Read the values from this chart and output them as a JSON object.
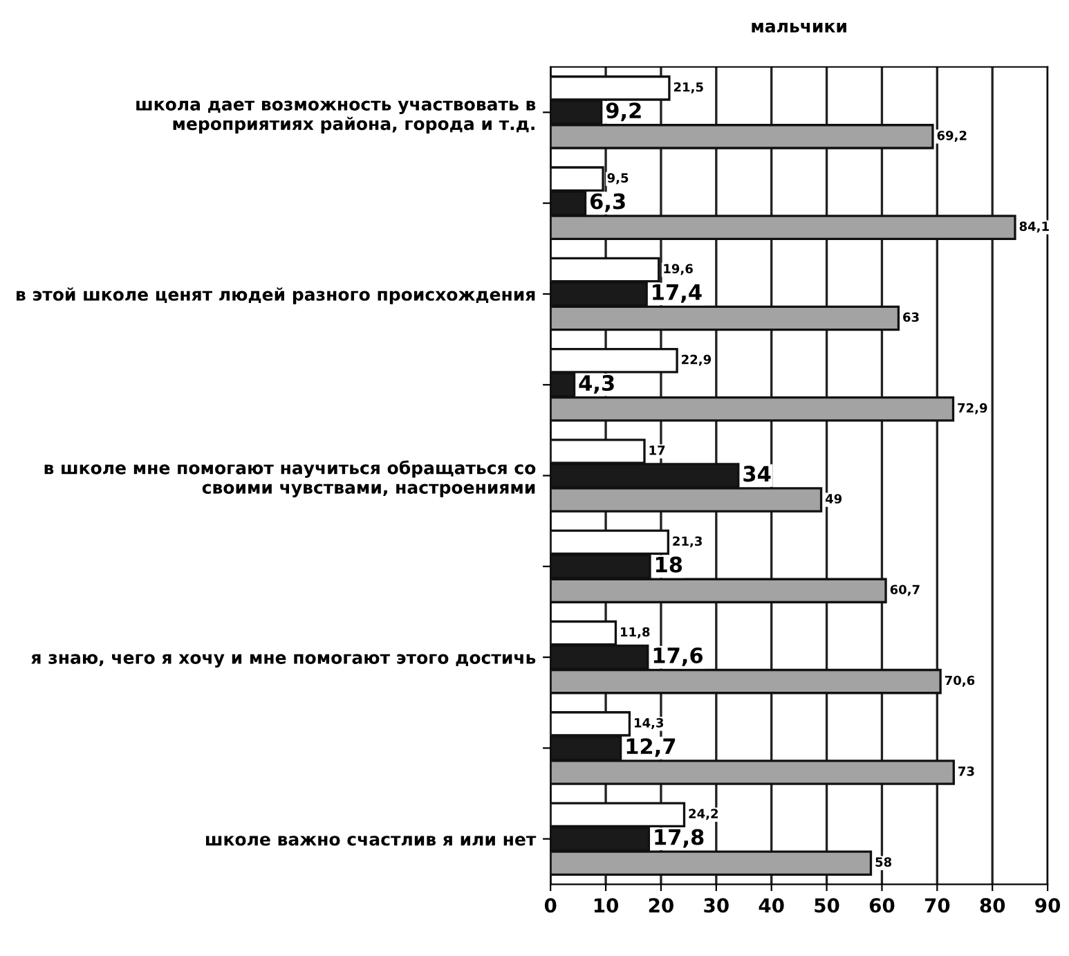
{
  "chart_data": {
    "type": "bar",
    "orientation": "horizontal",
    "title": "мальчики",
    "categories": [
      "школа дает возможность участвовать в мероприятиях района, города и т.д.",
      null,
      "в этой школе ценят людей разного происхождения",
      null,
      "в школе мне помогают научиться обращаться со своими чувствами, настроениями",
      null,
      "я знаю, чего я хочу и мне помогают этого достичь",
      null,
      "школе важно счастлив я или нет"
    ],
    "series": [
      {
        "color": "#ffffff",
        "values": [
          21.5,
          9.5,
          19.6,
          22.9,
          17,
          21.3,
          11.8,
          14.3,
          24.2
        ],
        "value_labels": [
          "21,5",
          "9,5",
          "19,6",
          "22,9",
          "17",
          "21,3",
          "11,8",
          "14,3",
          "24,2"
        ]
      },
      {
        "color": "#1a1a1a",
        "values": [
          9.2,
          6.3,
          17.4,
          4.3,
          34,
          18,
          17.6,
          12.7,
          17.8
        ],
        "value_labels": [
          "9,2",
          "6,3",
          "17,4",
          "4,3",
          "34",
          "18",
          "17,6",
          "12,7",
          "17,8"
        ]
      },
      {
        "color": "#a3a3a3",
        "values": [
          69.2,
          84.1,
          63,
          72.9,
          49,
          60.7,
          70.6,
          73,
          58
        ],
        "value_labels": [
          "69,2",
          "84,1",
          "63",
          "72,9",
          "49",
          "60,7",
          "70,6",
          "73",
          "58"
        ]
      }
    ],
    "xlim": [
      0,
      90
    ],
    "xticks": [
      0,
      10,
      20,
      30,
      40,
      50,
      60,
      70,
      80,
      90
    ],
    "grid": "x"
  }
}
